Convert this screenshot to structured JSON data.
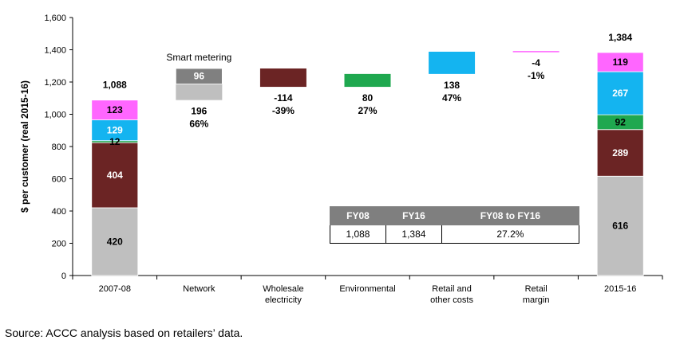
{
  "chart_data": {
    "type": "bar",
    "subtype": "waterfall",
    "ylabel": "$ per customer (real 2015-16)",
    "ylim": [
      0,
      1600
    ],
    "yticks": [
      "0",
      "200",
      "400",
      "600",
      "800",
      "1,000",
      "1,200",
      "1,400",
      "1,600"
    ],
    "categories": [
      "2007-08",
      "Network",
      "Wholesale\nelectricity",
      "Environmental",
      "Retail and\nother costs",
      "Retail\nmargin",
      "2015-16"
    ],
    "colors": {
      "network": "#bfbfbf",
      "smart_metering": "#808080",
      "wholesale": "#6b2424",
      "environmental": "#1fa84f",
      "retail_costs": "#14b4f0",
      "retail_margin": "#ff66ff"
    },
    "stacks": [
      {
        "category": "2007-08",
        "total_label": "1,088",
        "segments": [
          {
            "name": "Network",
            "value": 420,
            "label": "420"
          },
          {
            "name": "Wholesale electricity",
            "value": 404,
            "label": "404"
          },
          {
            "name": "Environmental",
            "value": 12,
            "label": "12"
          },
          {
            "name": "Retail and other costs",
            "value": 129,
            "label": "129"
          },
          {
            "name": "Retail margin",
            "value": 123,
            "label": "123"
          }
        ]
      },
      {
        "category": "2015-16",
        "total_label": "1,384",
        "segments": [
          {
            "name": "Network",
            "value": 616,
            "label": "616"
          },
          {
            "name": "Wholesale electricity",
            "value": 289,
            "label": "289"
          },
          {
            "name": "Environmental",
            "value": 92,
            "label": "92"
          },
          {
            "name": "Retail and other costs",
            "value": 267,
            "label": "267"
          },
          {
            "name": "Retail margin",
            "value": 119,
            "label": "119"
          }
        ]
      }
    ],
    "changes": [
      {
        "category": "Network",
        "start": 1088,
        "change": 196,
        "change_label": "196",
        "pct_label": "66%",
        "sub": {
          "name": "Smart metering",
          "value": 96,
          "label": "96"
        }
      },
      {
        "category": "Wholesale electricity",
        "start": 1284,
        "change": -114,
        "change_label": "-114",
        "pct_label": "-39%"
      },
      {
        "category": "Environmental",
        "start": 1170,
        "change": 80,
        "change_label": "80",
        "pct_label": "27%"
      },
      {
        "category": "Retail and other costs",
        "start": 1250,
        "change": 138,
        "change_label": "138",
        "pct_label": "47%"
      },
      {
        "category": "Retail margin",
        "start": 1388,
        "change": -4,
        "change_label": "-4",
        "pct_label": "-1%"
      }
    ],
    "table": {
      "headers": [
        "FY08",
        "FY16",
        "FY08 to FY16"
      ],
      "row": [
        "1,088",
        "1,384",
        "27.2%"
      ]
    },
    "grid": false
  },
  "source": "Source: ACCC analysis based on retailers’ data."
}
